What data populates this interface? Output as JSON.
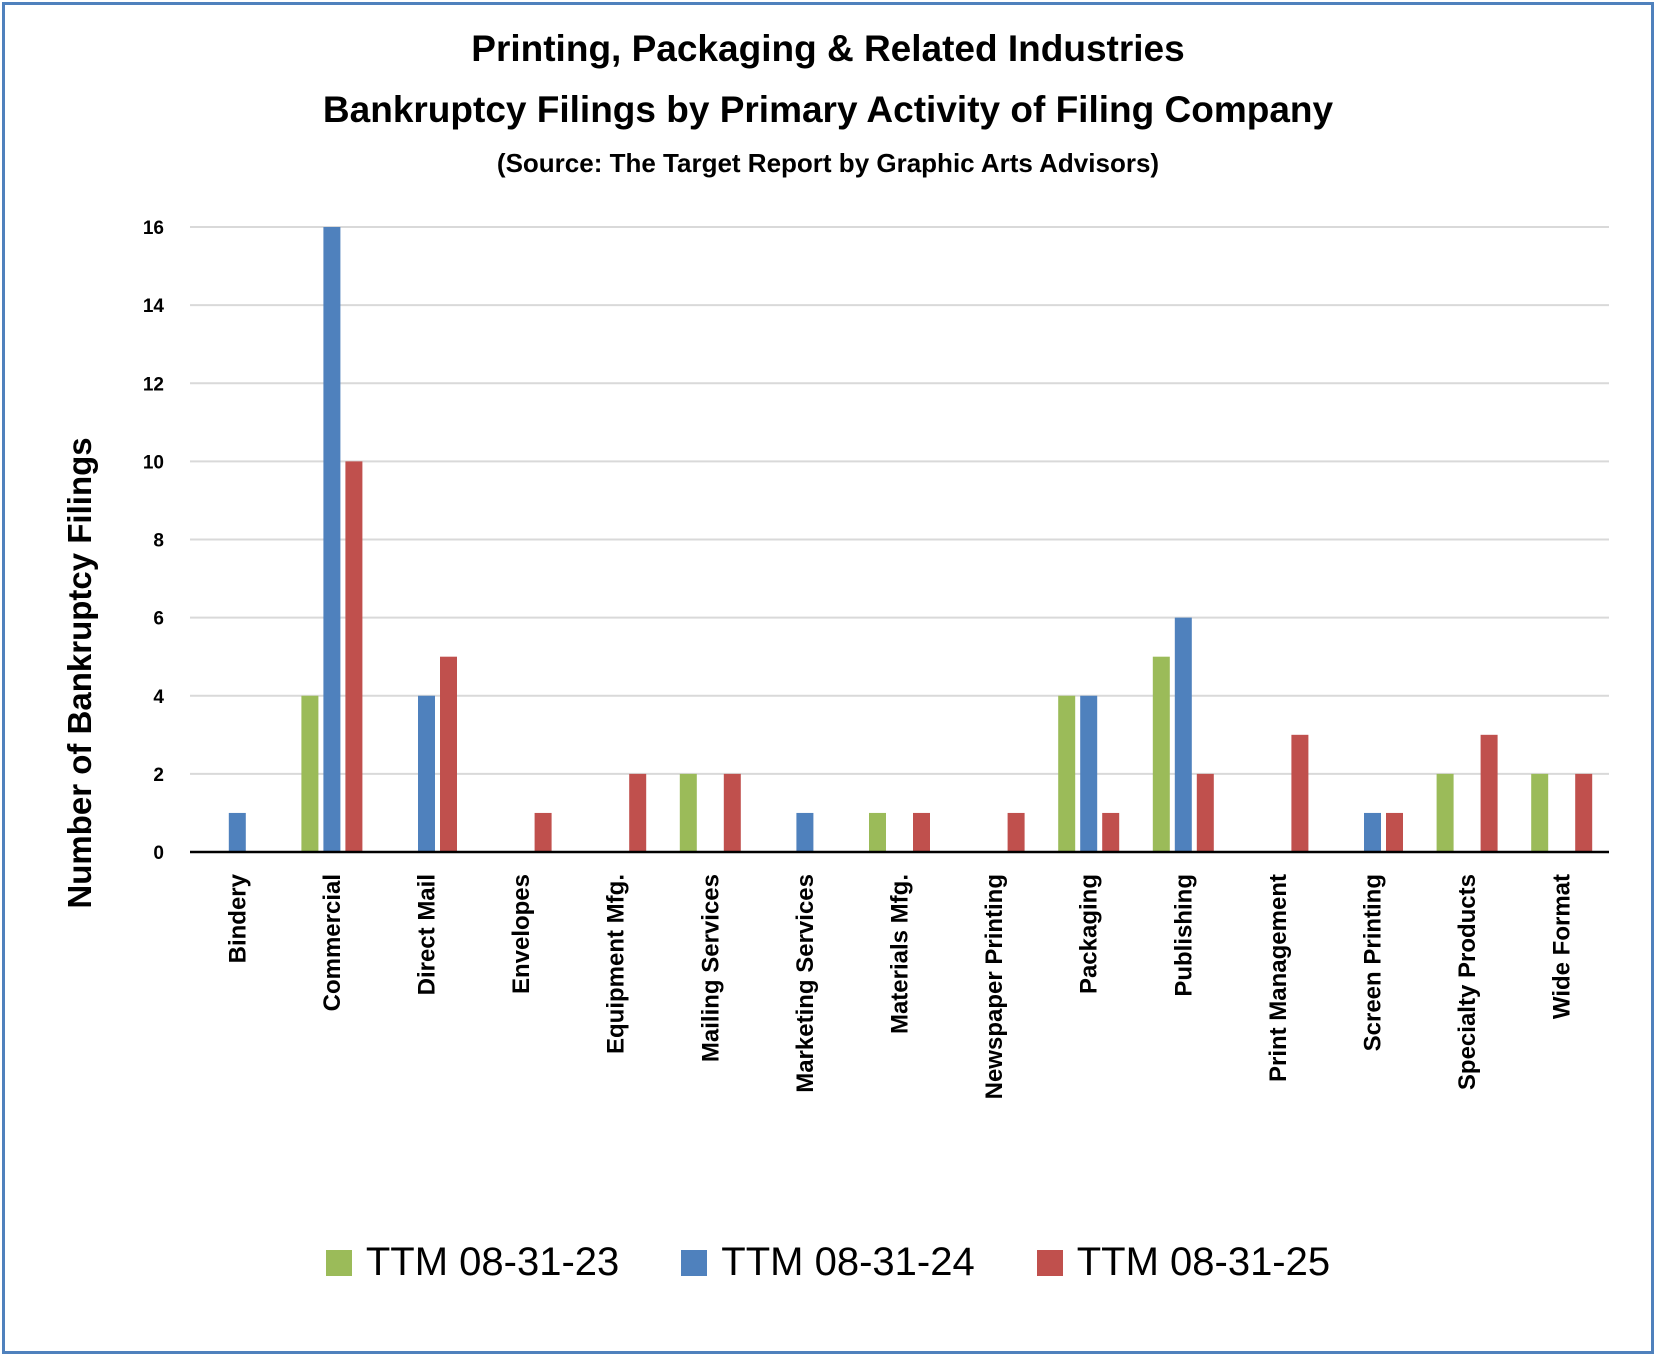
{
  "chart_data": {
    "type": "bar",
    "title": "Printing, Packaging & Related Industries",
    "subtitle": "Bankruptcy Filings by Primary Activity of Filing Company",
    "source": "(Source: The Target Report by Graphic Arts Advisors)",
    "xlabel": "",
    "ylabel": "Number of Bankruptcy Filings",
    "ylim": [
      0,
      16
    ],
    "yticks": [
      0,
      2,
      4,
      6,
      8,
      10,
      12,
      14,
      16
    ],
    "grid": true,
    "legend_position": "bottom",
    "categories": [
      "Bindery",
      "Commercial",
      "Direct Mail",
      "Envelopes",
      "Equipment Mfg.",
      "Mailing Services",
      "Marketing Services",
      "Materials Mfg.",
      "Newspaper Printing",
      "Packaging",
      "Publishing",
      "Print Management",
      "Screen Printing",
      "Specialty Products",
      "Wide Format"
    ],
    "series": [
      {
        "name": "TTM 08-31-23",
        "color": "#9BBB59",
        "values": [
          0,
          4,
          0,
          0,
          0,
          2,
          0,
          1,
          0,
          4,
          5,
          0,
          0,
          2,
          2
        ]
      },
      {
        "name": "TTM 08-31-24",
        "color": "#4F81BD",
        "values": [
          1,
          16,
          4,
          0,
          0,
          0,
          1,
          0,
          0,
          4,
          6,
          0,
          1,
          0,
          0
        ]
      },
      {
        "name": "TTM 08-31-25",
        "color": "#C0504D",
        "values": [
          0,
          10,
          5,
          1,
          2,
          2,
          0,
          1,
          1,
          1,
          2,
          3,
          1,
          3,
          2
        ]
      }
    ]
  },
  "colors": {
    "border": "#4F81BD",
    "grid": "#D9D9D9",
    "axis": "#000000"
  }
}
